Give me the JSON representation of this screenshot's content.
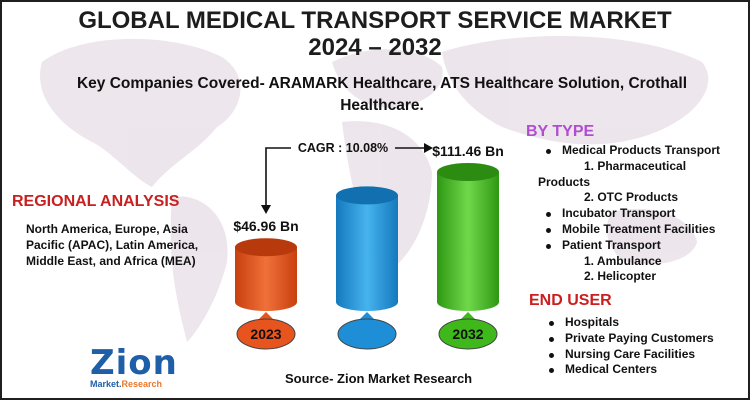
{
  "title_line1": "GLOBAL MEDICAL TRANSPORT SERVICE MARKET",
  "title_line2": "2024 – 2032",
  "subtitle": "Key Companies Covered- ARAMARK Healthcare, ATS Healthcare Solution, Crothall Healthcare.",
  "regional": {
    "heading": "REGIONAL ANALYSIS",
    "text": "North America, Europe, Asia Pacific (APAC), Latin America, Middle East, and Africa (MEA)"
  },
  "by_type": {
    "heading": "BY TYPE",
    "items": [
      {
        "text": "Medical Products Transport",
        "bullet": true
      },
      {
        "text": "1. Pharmaceutical",
        "bullet": false
      },
      {
        "text": "Products",
        "bullet": false
      },
      {
        "text": "2. OTC Products",
        "bullet": false
      },
      {
        "text": "Incubator Transport",
        "bullet": true
      },
      {
        "text": "Mobile Treatment Facilities",
        "bullet": true
      },
      {
        "text": "Patient Transport",
        "bullet": true
      },
      {
        "text": "1. Ambulance",
        "bullet": false
      },
      {
        "text": "2. Helicopter",
        "bullet": false
      }
    ]
  },
  "end_user": {
    "heading": "END USER",
    "items": [
      "Hospitals",
      "Private Paying Customers",
      "Nursing Care Facilities",
      "Medical Centers"
    ]
  },
  "source": "Source- Zion Market Research",
  "logo": {
    "main": "Zion",
    "sub1": "Market.",
    "sub2": "Research"
  },
  "chart_data": {
    "type": "bar",
    "categories": [
      "2023",
      "",
      "2032"
    ],
    "values": [
      46.96,
      null,
      111.46
    ],
    "value_labels": [
      "$46.96 Bn",
      "",
      "$111.46 Bn"
    ],
    "cagr_label": "CAGR : 10.08%",
    "colors": [
      "#e8541e",
      "#1e8fd6",
      "#3fb81b"
    ]
  }
}
